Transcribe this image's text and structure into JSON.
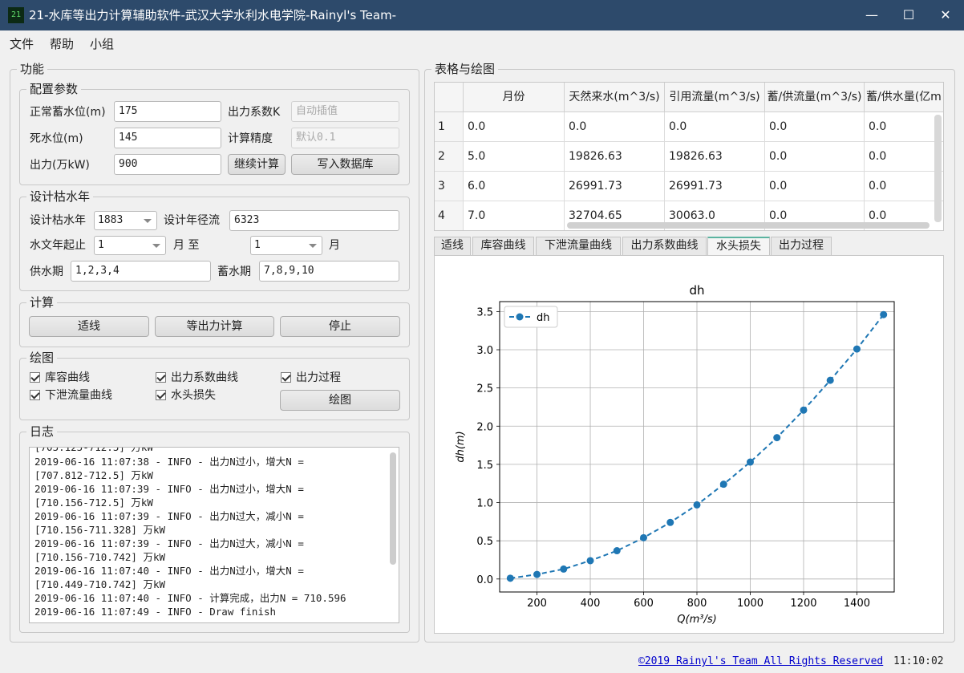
{
  "window": {
    "icon_text": "21",
    "title": "21-水库等出力计算辅助软件-武汉大学水利水电学院-Rainyl's Team-",
    "minimize": "—",
    "maximize": "☐",
    "close": "✕"
  },
  "menu": [
    "文件",
    "帮助",
    "小组"
  ],
  "left": {
    "title": "功能",
    "config": {
      "title": "配置参数",
      "normal_level_label": "正常蓄水位(m)",
      "normal_level_value": "175",
      "dead_level_label": "死水位(m)",
      "dead_level_value": "145",
      "output_label": "出力(万kW)",
      "output_value": "900",
      "k_label": "出力系数K",
      "k_placeholder": "自动插值",
      "precision_label": "计算精度",
      "precision_placeholder": "默认0.1",
      "continue_button": "继续计算",
      "write_db_button": "写入数据库"
    },
    "design": {
      "title": "设计枯水年",
      "year_label": "设计枯水年",
      "year_value": "1883",
      "runoff_label": "设计年径流",
      "runoff_value": "6323",
      "hydro_year_label": "水文年起止",
      "start_month": "1",
      "month_to_label": "月 至",
      "end_month": "1",
      "month_label": "月",
      "supply_label": "供水期",
      "supply_value": "1,2,3,4",
      "store_label": "蓄水期",
      "store_value": "7,8,9,10"
    },
    "calc": {
      "title": "计算",
      "fit_button": "适线",
      "equal_output_button": "等出力计算",
      "stop_button": "停止"
    },
    "plot": {
      "title": "绘图",
      "cb_capacity": "库容曲线",
      "cb_coef": "出力系数曲线",
      "cb_process": "出力过程",
      "cb_discharge": "下泄流量曲线",
      "cb_headloss": "水头损失",
      "plot_button": "绘图"
    },
    "log": {
      "title": "日志",
      "lines": [
        "[705.125-712.5] 万kW",
        "2019-06-16 11:07:38 - INFO - 出力N过小，增大N =",
        "[707.812-712.5] 万kW",
        "2019-06-16 11:07:39 - INFO - 出力N过小，增大N =",
        "[710.156-712.5] 万kW",
        "2019-06-16 11:07:39 - INFO - 出力N过大，减小N =",
        "[710.156-711.328] 万kW",
        "2019-06-16 11:07:39 - INFO - 出力N过大，减小N =",
        "[710.156-710.742] 万kW",
        "2019-06-16 11:07:40 - INFO - 出力N过小，增大N =",
        "[710.449-710.742] 万kW",
        "2019-06-16 11:07:40 - INFO - 计算完成，出力N = 710.596",
        "2019-06-16 11:07:49 - INFO - Draw finish"
      ]
    }
  },
  "right": {
    "title": "表格与绘图",
    "table": {
      "headers": [
        "月份",
        "天然来水(m^3/s)",
        "引用流量(m^3/s)",
        "蓄/供流量(m^3/s)",
        "蓄/供水量(亿m"
      ],
      "rows": [
        {
          "n": "1",
          "cells": [
            "0.0",
            "0.0",
            "0.0",
            "0.0",
            "0.0"
          ]
        },
        {
          "n": "2",
          "cells": [
            "5.0",
            "19826.63",
            "19826.63",
            "0.0",
            "0.0"
          ]
        },
        {
          "n": "3",
          "cells": [
            "6.0",
            "26991.73",
            "26991.73",
            "0.0",
            "0.0"
          ]
        },
        {
          "n": "4",
          "cells": [
            "7.0",
            "32704.65",
            "30063.0",
            "0.0",
            "0.0"
          ]
        }
      ]
    },
    "tabs": [
      "适线",
      "库容曲线",
      "下泄流量曲线",
      "出力系数曲线",
      "水头损失",
      "出力过程"
    ],
    "active_tab": "水头损失"
  },
  "chart_data": {
    "type": "line",
    "title": "dh",
    "xlabel": "Q(m³/s)",
    "ylabel": "dh(m)",
    "legend": "top-left",
    "grid": true,
    "color": "#1f77b4",
    "line_style": "dashed",
    "marker": "circle",
    "xlim": [
      60,
      1540
    ],
    "ylim": [
      -0.17,
      3.63
    ],
    "xticks": [
      200,
      400,
      600,
      800,
      1000,
      1200,
      1400
    ],
    "yticks": [
      0.0,
      0.5,
      1.0,
      1.5,
      2.0,
      2.5,
      3.0,
      3.5
    ],
    "series": [
      {
        "name": "dh",
        "x": [
          100,
          200,
          300,
          400,
          500,
          600,
          700,
          800,
          900,
          1000,
          1100,
          1200,
          1300,
          1400,
          1500
        ],
        "y": [
          0.01,
          0.06,
          0.13,
          0.24,
          0.37,
          0.54,
          0.74,
          0.97,
          1.24,
          1.53,
          1.85,
          2.21,
          2.6,
          3.01,
          3.46
        ]
      }
    ]
  },
  "status": {
    "copyright": "©2019 Rainyl's Team All Rights Reserved ",
    "time": "11:10:02"
  }
}
